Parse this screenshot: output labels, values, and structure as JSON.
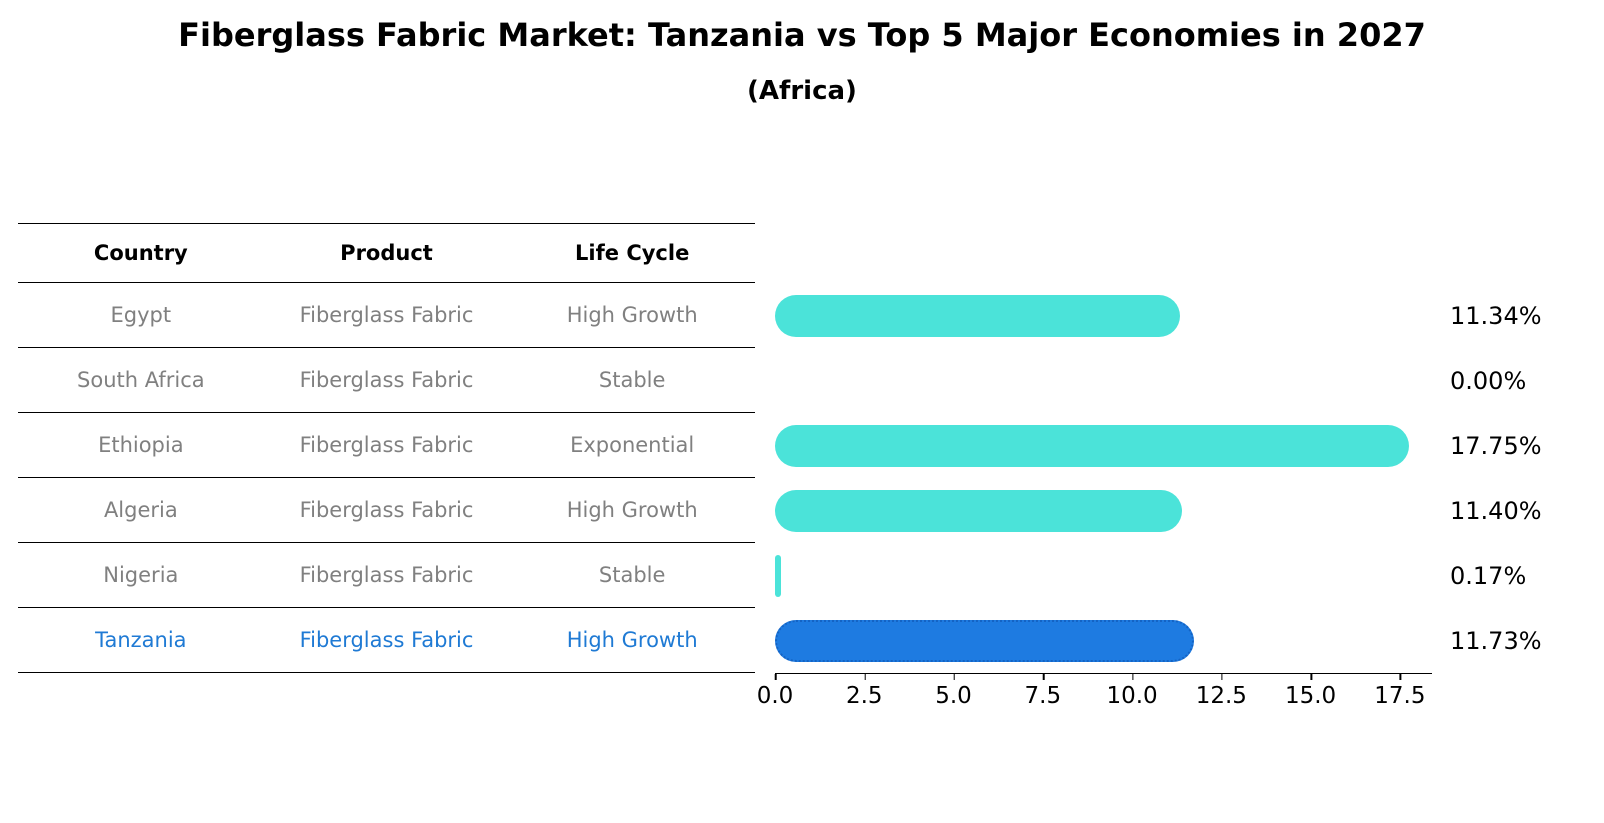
{
  "chart_data": {
    "type": "bar",
    "orientation": "horizontal",
    "title": "Fiberglass Fabric Market: Tanzania vs Top 5 Major Economies in 2027",
    "subtitle": "(Africa)",
    "table_headers": [
      "Country",
      "Product",
      "Life Cycle"
    ],
    "rows": [
      {
        "country": "Egypt",
        "product": "Fiberglass Fabric",
        "life_cycle": "High Growth",
        "value": 11.34,
        "label": "11.34%",
        "highlight": false
      },
      {
        "country": "South Africa",
        "product": "Fiberglass Fabric",
        "life_cycle": "Stable",
        "value": 0.0,
        "label": "0.00%",
        "highlight": false
      },
      {
        "country": "Ethiopia",
        "product": "Fiberglass Fabric",
        "life_cycle": "Exponential",
        "value": 17.75,
        "label": "17.75%",
        "highlight": false
      },
      {
        "country": "Algeria",
        "product": "Fiberglass Fabric",
        "life_cycle": "High Growth",
        "value": 11.4,
        "label": "11.40%",
        "highlight": false
      },
      {
        "country": "Nigeria",
        "product": "Fiberglass Fabric",
        "life_cycle": "Stable",
        "value": 0.17,
        "label": "0.17%",
        "highlight": false
      },
      {
        "country": "Tanzania",
        "product": "Fiberglass Fabric",
        "life_cycle": "High Growth",
        "value": 11.73,
        "label": "11.73%",
        "highlight": true
      }
    ],
    "xlabel": "",
    "ylabel": "",
    "x_ticks": [
      0.0,
      2.5,
      5.0,
      7.5,
      10.0,
      12.5,
      15.0,
      17.5
    ],
    "x_tick_labels": [
      "0.0",
      "2.5",
      "5.0",
      "7.5",
      "10.0",
      "12.5",
      "15.0",
      "17.5"
    ],
    "xlim": [
      0,
      18.4
    ],
    "x_max": 18.4,
    "grid": false,
    "legend": false,
    "colors": {
      "bar": "#4BE3D9",
      "bar_highlight": "#1E7BE1",
      "bar_highlight_border": "#1463C4",
      "highlight_text": "#1F7AD4",
      "row_text": "#808080",
      "axis_text": "#000000"
    }
  }
}
